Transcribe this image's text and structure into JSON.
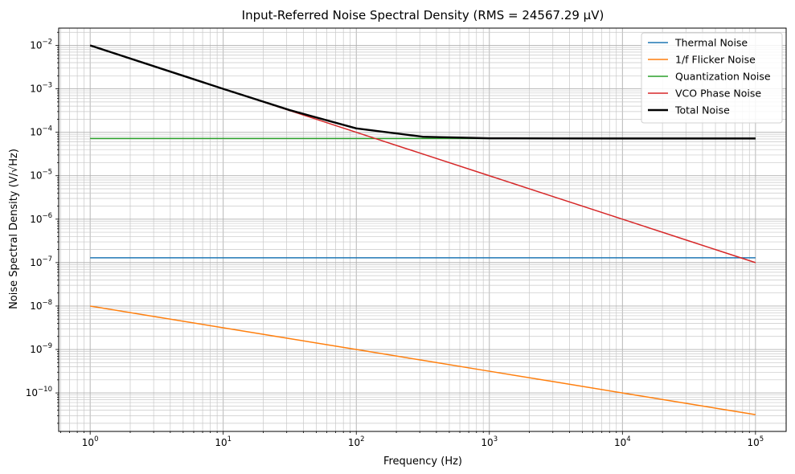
{
  "chart_data": {
    "type": "line",
    "title": "Input-Referred Noise Spectral Density (RMS = 24567.29 µV)",
    "xlabel": "Frequency (Hz)",
    "ylabel": "Noise Spectral Density (V/√Hz)",
    "xscale": "log",
    "yscale": "log",
    "xlim": [
      0.58,
      170000
    ],
    "ylim": [
      1.3e-11,
      0.025
    ],
    "grid": true,
    "grid_minor": true,
    "legend_position": "top-right",
    "x_ticks": [
      {
        "base": "10",
        "exp": "0",
        "value": 1
      },
      {
        "base": "10",
        "exp": "1",
        "value": 10
      },
      {
        "base": "10",
        "exp": "2",
        "value": 100
      },
      {
        "base": "10",
        "exp": "3",
        "value": 1000
      },
      {
        "base": "10",
        "exp": "4",
        "value": 10000
      },
      {
        "base": "10",
        "exp": "5",
        "value": 100000
      }
    ],
    "y_ticks": [
      {
        "base": "10",
        "exp": "−10",
        "value": 1e-10
      },
      {
        "base": "10",
        "exp": "−9",
        "value": 1e-09
      },
      {
        "base": "10",
        "exp": "−8",
        "value": 1e-08
      },
      {
        "base": "10",
        "exp": "−7",
        "value": 1e-07
      },
      {
        "base": "10",
        "exp": "−6",
        "value": 1e-06
      },
      {
        "base": "10",
        "exp": "−5",
        "value": 1e-05
      },
      {
        "base": "10",
        "exp": "−4",
        "value": 0.0001
      },
      {
        "base": "10",
        "exp": "−3",
        "value": 0.001
      },
      {
        "base": "10",
        "exp": "−2",
        "value": 0.01
      }
    ],
    "x": [
      1,
      3.16,
      10,
      31.6,
      100,
      316,
      1000,
      3160,
      10000,
      31600,
      100000
    ],
    "series": [
      {
        "name": "Thermal Noise",
        "color": "#1f77b4",
        "width": 1.5,
        "values": [
          1.29e-07,
          1.29e-07,
          1.29e-07,
          1.29e-07,
          1.29e-07,
          1.29e-07,
          1.29e-07,
          1.29e-07,
          1.29e-07,
          1.29e-07,
          1.29e-07
        ]
      },
      {
        "name": "1/f Flicker Noise",
        "color": "#ff7f0e",
        "width": 1.5,
        "values": [
          1e-08,
          5.62e-09,
          3.16e-09,
          1.78e-09,
          1e-09,
          5.62e-10,
          3.16e-10,
          1.78e-10,
          1e-10,
          5.62e-11,
          3.16e-11
        ]
      },
      {
        "name": "Quantization Noise",
        "color": "#2ca02c",
        "width": 1.5,
        "values": [
          7.2e-05,
          7.2e-05,
          7.2e-05,
          7.2e-05,
          7.2e-05,
          7.2e-05,
          7.2e-05,
          7.2e-05,
          7.2e-05,
          7.2e-05,
          7.2e-05
        ]
      },
      {
        "name": "VCO Phase Noise",
        "color": "#d62728",
        "width": 1.5,
        "values": [
          0.01,
          0.00316,
          0.001,
          0.000316,
          0.0001,
          3.16e-05,
          1e-05,
          3.16e-06,
          1e-06,
          3.16e-07,
          1e-07
        ]
      },
      {
        "name": "Total Noise",
        "color": "#000000",
        "width": 2.4,
        "values": [
          0.01,
          0.00316,
          0.001,
          0.000324,
          0.000123,
          7.9e-05,
          7.27e-05,
          7.21e-05,
          7.2e-05,
          7.2e-05,
          7.2e-05
        ]
      }
    ]
  }
}
